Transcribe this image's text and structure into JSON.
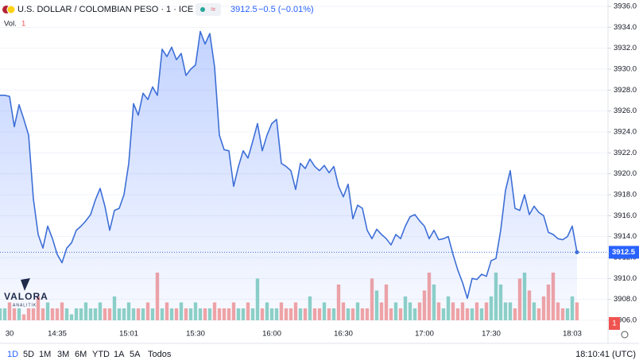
{
  "chart_data": {
    "type": "area",
    "header": {
      "symbol": "U.S. DOLLAR / COLOMBIAN PESO · 1 · ICE",
      "badge": "≈",
      "price": "3912.5",
      "change": "−0.5 (−0.01%)",
      "vol_label": "Vol.",
      "vol_value": "1"
    },
    "watermark": {
      "name": "VALORA",
      "sub": "ANALITIK"
    },
    "toolbar": {
      "ranges": [
        "1D",
        "5D",
        "1M",
        "3M",
        "6M",
        "YTD",
        "1A",
        "5A",
        "Todos"
      ],
      "clock": "18:10:41 (UTC)"
    },
    "color": "#3d6fd6",
    "up_color": "#8fd3c5",
    "down_color": "#f5a5a3",
    "grid": true,
    "categories": [
      null,
      null,
      "30",
      null,
      null,
      null,
      null,
      null,
      null,
      null,
      null,
      null,
      "14:35",
      null,
      null,
      null,
      null,
      null,
      null,
      null,
      null,
      null,
      null,
      null,
      null,
      null,
      null,
      "15:01",
      null,
      null,
      null,
      null,
      null,
      null,
      null,
      null,
      null,
      null,
      null,
      null,
      null,
      "15:30",
      null,
      null,
      null,
      null,
      null,
      null,
      null,
      null,
      null,
      null,
      null,
      null,
      null,
      null,
      null,
      "16:00",
      null,
      null,
      null,
      null,
      null,
      null,
      null,
      null,
      null,
      null,
      null,
      null,
      null,
      null,
      "16:30",
      null,
      null,
      null,
      null,
      null,
      null,
      null,
      null,
      null,
      null,
      null,
      null,
      null,
      null,
      null,
      null,
      "17:00",
      null,
      null,
      null,
      null,
      null,
      null,
      null,
      null,
      null,
      null,
      null,
      null,
      null,
      "17:30",
      null,
      null,
      null,
      null,
      null,
      null,
      null,
      null,
      null,
      null,
      null,
      null,
      null,
      null,
      null,
      null,
      "18:03",
      null
    ],
    "values": [
      3927.5,
      3927.5,
      3927.4,
      3924.5,
      3926.6,
      3925.2,
      3923.7,
      3917.6,
      3914.2,
      3912.9,
      3915.0,
      3913.8,
      3912.3,
      3911.5,
      3912.9,
      3913.4,
      3914.6,
      3915.0,
      3915.5,
      3916.1,
      3917.5,
      3918.6,
      3916.9,
      3914.6,
      3916.5,
      3916.7,
      3918.0,
      3921.0,
      3926.7,
      3925.6,
      3927.7,
      3927.1,
      3928.3,
      3927.5,
      3931.9,
      3931.2,
      3932.1,
      3930.9,
      3931.5,
      3929.4,
      3930.0,
      3930.4,
      3933.6,
      3932.4,
      3933.4,
      3930.2,
      3923.7,
      3922.3,
      3922.2,
      3918.8,
      3920.7,
      3922.2,
      3921.5,
      3923.1,
      3924.8,
      3922.2,
      3923.7,
      3924.8,
      3925.2,
      3921.0,
      3920.7,
      3920.3,
      3918.5,
      3921.0,
      3920.5,
      3921.4,
      3920.7,
      3920.3,
      3920.8,
      3920.1,
      3920.7,
      3918.8,
      3917.8,
      3919.0,
      3915.7,
      3917.0,
      3916.7,
      3914.6,
      3913.8,
      3914.7,
      3914.2,
      3913.8,
      3913.2,
      3914.2,
      3913.8,
      3915.0,
      3915.9,
      3916.1,
      3915.5,
      3915.0,
      3913.8,
      3914.6,
      3913.7,
      3913.8,
      3914.0,
      3912.3,
      3910.8,
      3909.6,
      3908.1,
      3910.0,
      3909.9,
      3910.4,
      3910.2,
      3911.7,
      3911.9,
      3914.6,
      3918.4,
      3920.3,
      3916.7,
      3916.5,
      3918.0,
      3916.1,
      3916.9,
      3916.3,
      3916.0,
      3914.4,
      3914.2,
      3913.8,
      3913.7,
      3914.0,
      3915.0,
      3912.5
    ],
    "volume": [
      2,
      2,
      3,
      2,
      2,
      1,
      2,
      2,
      4,
      2,
      3,
      2,
      2,
      3,
      2,
      1,
      2,
      2,
      3,
      2,
      2,
      3,
      2,
      2,
      4,
      2,
      2,
      3,
      2,
      2,
      2,
      3,
      2,
      8,
      2,
      3,
      2,
      2,
      3,
      2,
      2,
      3,
      2,
      2,
      2,
      3,
      2,
      2,
      2,
      3,
      2,
      2,
      3,
      2,
      7,
      2,
      3,
      2,
      2,
      3,
      2,
      2,
      3,
      2,
      2,
      4,
      2,
      2,
      3,
      2,
      2,
      6,
      3,
      2,
      2,
      3,
      2,
      2,
      7,
      5,
      3,
      6,
      2,
      3,
      2,
      4,
      3,
      2,
      3,
      5,
      8,
      6,
      3,
      2,
      4,
      3,
      2,
      3,
      2,
      2,
      3,
      2,
      3,
      4,
      8,
      6,
      3,
      3,
      2,
      7,
      8,
      5,
      3,
      2,
      4,
      6,
      8,
      3,
      2,
      2,
      4,
      3
    ],
    "ylim": [
      3906,
      3936
    ],
    "yticks": [
      {
        "value": 3906,
        "label": "3906.0"
      },
      {
        "value": 3908,
        "label": "3908.0"
      },
      {
        "value": 3910,
        "label": "3910.0"
      },
      {
        "value": 3912,
        "label": "3912.0"
      },
      {
        "value": 3914,
        "label": "3914.0"
      },
      {
        "value": 3916,
        "label": "3916.0"
      },
      {
        "value": 3918,
        "label": "3918.0"
      },
      {
        "value": 3920,
        "label": "3920.0"
      },
      {
        "value": 3922,
        "label": "3922.0"
      },
      {
        "value": 3924,
        "label": "3924.0"
      },
      {
        "value": 3926,
        "label": "3926.0"
      },
      {
        "value": 3928,
        "label": "3928.0"
      },
      {
        "value": 3930,
        "label": "3930.0"
      },
      {
        "value": 3932,
        "label": "3932.0"
      },
      {
        "value": 3934,
        "label": "3934.0"
      },
      {
        "value": 3936,
        "label": "3936.0"
      }
    ]
  }
}
